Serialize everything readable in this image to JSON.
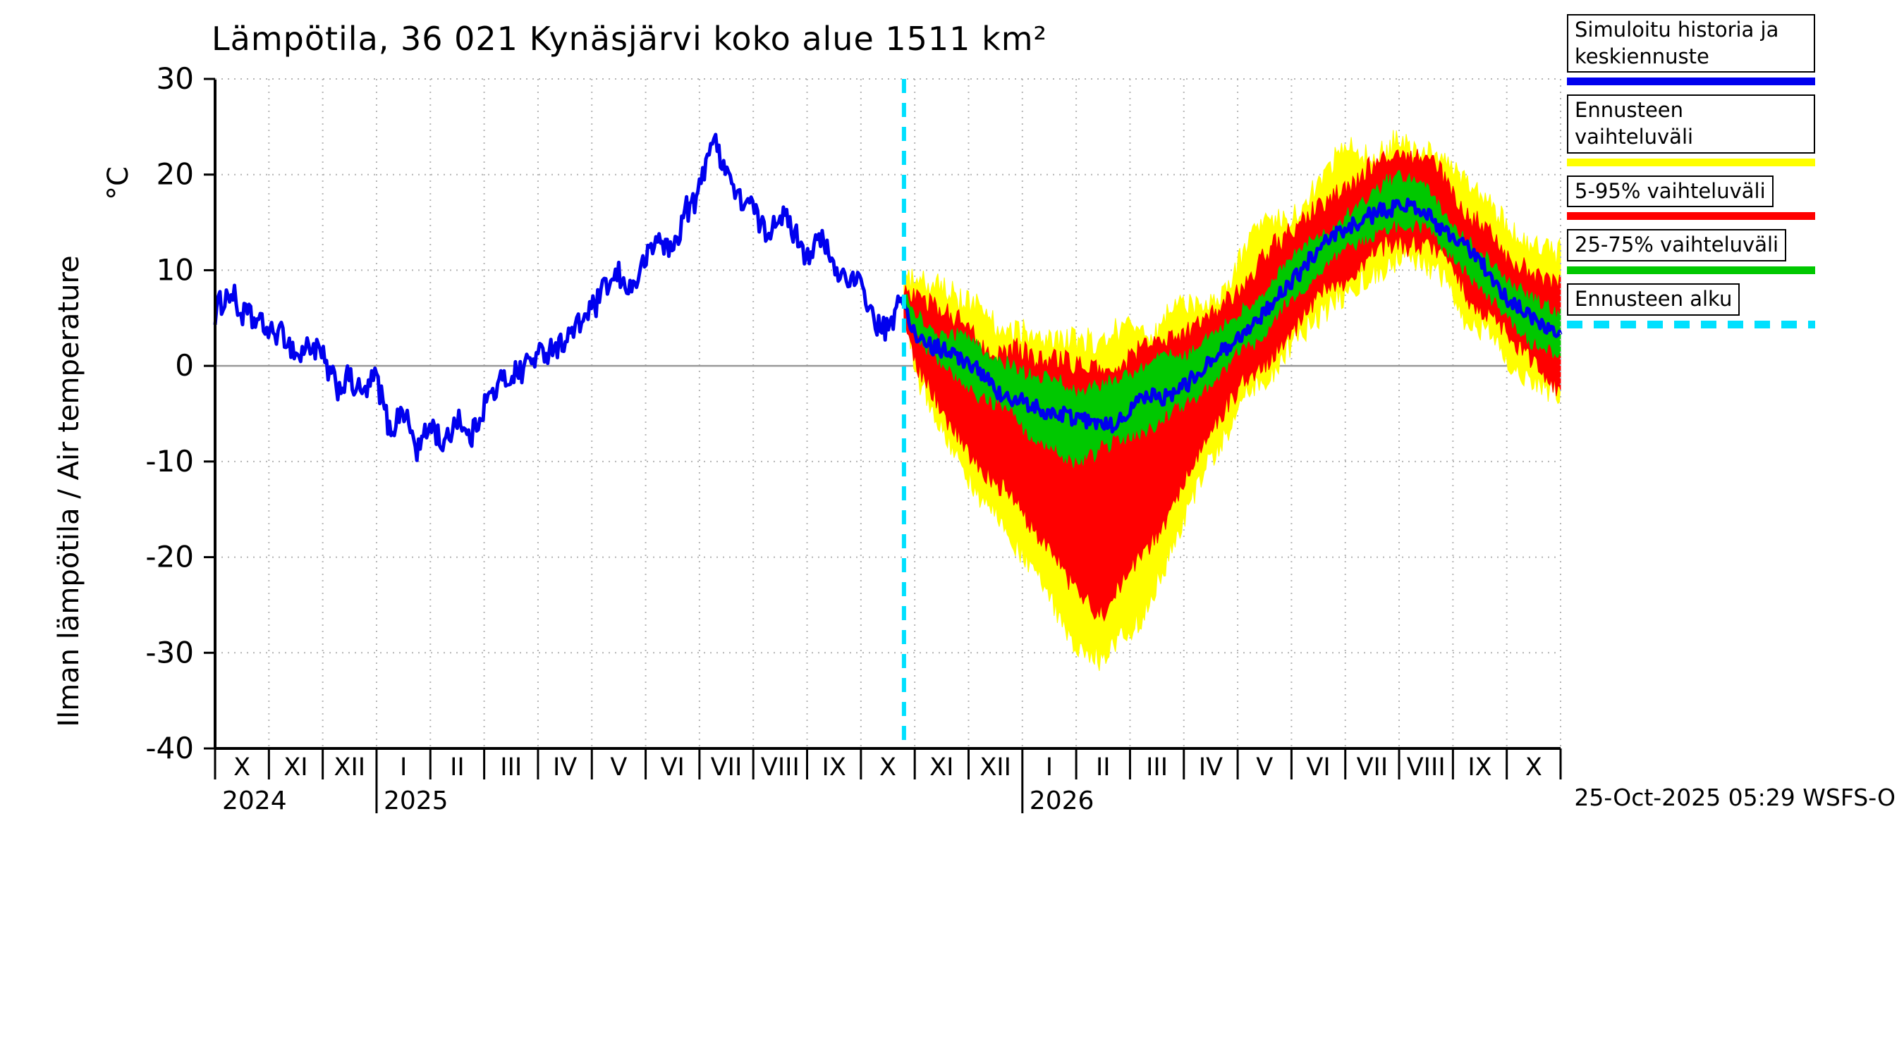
{
  "ylabel": {
    "main": "Ilman lämpötila / Air temperature",
    "unit": "°C"
  },
  "footer": "25-Oct-2025 05:29 WSFS-O",
  "legend": {
    "items": [
      {
        "label": "Simuloitu historia ja keskiennuste",
        "color": "#0000ee",
        "style": "solid"
      },
      {
        "label": "Ennusteen vaihteluväli",
        "color": "#ffff00",
        "style": "solid"
      },
      {
        "label": "5-95% vaihteluväli",
        "color": "#ff0000",
        "style": "solid"
      },
      {
        "label": "25-75% vaihteluväli",
        "color": "#00c800",
        "style": "solid"
      },
      {
        "label": "Ennusteen alku",
        "color": "#00e0ff",
        "style": "dashed"
      }
    ]
  },
  "chart_data": {
    "type": "line",
    "title": "Lämpötila, 36 021 Kynäsjärvi koko alue 1511 km²",
    "xlabel": "",
    "ylabel": "Ilman lämpötila / Air temperature (°C)",
    "ylim": [
      -40,
      30
    ],
    "yticks": [
      -40,
      -30,
      -20,
      -10,
      0,
      10,
      20,
      30
    ],
    "xlim": [
      0,
      25
    ],
    "x_unit": "months since 2024-10-01",
    "month_tick_labels": [
      "X",
      "XI",
      "XII",
      "I",
      "II",
      "III",
      "IV",
      "V",
      "VI",
      "VII",
      "VIII",
      "IX",
      "X",
      "XI",
      "XII",
      "I",
      "II",
      "III",
      "IV",
      "V",
      "VI",
      "VII",
      "VIII",
      "IX",
      "X"
    ],
    "year_labels": [
      {
        "text": "2024",
        "x": 0
      },
      {
        "text": "2025",
        "x": 3
      },
      {
        "text": "2026",
        "x": 15
      }
    ],
    "forecast_start_x": 12.8,
    "forecast_start_label": "Ennusteen alku",
    "grid": true,
    "legend_position": "top-right",
    "colors": {
      "history": "#0000ee",
      "median": "#0000ee",
      "band_yellow": "#ffff00",
      "band_red": "#ff0000",
      "band_green": "#00c800",
      "forecast_start": "#00e0ff",
      "grid": "#b4b4b4",
      "zero_line": "#9a9a9a"
    },
    "series": {
      "history": {
        "name": "Simuloitu historia ja keskiennuste",
        "x": [
          0,
          0.25,
          0.5,
          0.75,
          1.0,
          1.25,
          1.5,
          1.75,
          2.0,
          2.25,
          2.5,
          2.75,
          3.0,
          3.25,
          3.5,
          3.75,
          4.0,
          4.25,
          4.5,
          4.75,
          5.0,
          5.25,
          5.5,
          5.75,
          6.0,
          6.25,
          6.5,
          6.75,
          7.0,
          7.25,
          7.5,
          7.75,
          8.0,
          8.25,
          8.5,
          8.75,
          9.0,
          9.2,
          9.35,
          9.5,
          9.75,
          10.0,
          10.25,
          10.5,
          10.75,
          11.0,
          11.25,
          11.5,
          11.75,
          12.0,
          12.25,
          12.5,
          12.8
        ],
        "y": [
          6,
          8,
          5,
          4,
          3,
          3.5,
          1.5,
          2,
          0,
          -3,
          -1.5,
          -4,
          -2,
          -7,
          -4,
          -9,
          -6,
          -8,
          -5,
          -7,
          -4,
          -2,
          -1,
          0,
          1,
          2.5,
          3,
          4,
          5,
          7,
          9,
          8,
          11,
          13,
          12,
          16,
          18,
          24,
          23,
          21,
          17,
          16,
          14,
          17,
          15,
          12,
          13,
          10,
          9,
          8,
          4,
          3,
          7
        ]
      },
      "forecast_median": {
        "name": "Keskiennuste",
        "x": [
          12.8,
          13,
          13.5,
          14,
          14.5,
          15,
          15.5,
          16,
          16.5,
          17,
          17.5,
          18,
          18.5,
          19,
          19.5,
          20,
          20.5,
          21,
          21.5,
          22,
          22.5,
          23,
          23.5,
          24,
          24.5,
          25
        ],
        "y": [
          7,
          4,
          1.5,
          0,
          -2,
          -3.5,
          -5,
          -6,
          -5.5,
          -4.5,
          -3.5,
          -1.5,
          0.5,
          3,
          6,
          9,
          12,
          14,
          16,
          17.5,
          16.5,
          13.5,
          10.5,
          7.5,
          5,
          3.5
        ]
      },
      "band_yellow": {
        "name": "Ennusteen vaihteluväli",
        "x": [
          12.8,
          13,
          13.5,
          14,
          14.5,
          15,
          15.5,
          16,
          16.5,
          17,
          17.5,
          18,
          18.5,
          19,
          19.5,
          20,
          20.5,
          21,
          21.5,
          22,
          22.5,
          23,
          23.5,
          24,
          24.5,
          25
        ],
        "lo": [
          6,
          -1,
          -7,
          -12,
          -16,
          -20,
          -25,
          -29,
          -31,
          -27,
          -22,
          -16,
          -10,
          -5,
          -1,
          2,
          5,
          8,
          10,
          11.5,
          10.5,
          7,
          4,
          1,
          -2,
          -4
        ],
        "hi": [
          8,
          9,
          8,
          6,
          4,
          3,
          2.5,
          2,
          1.5,
          2.5,
          3.5,
          5.5,
          8,
          10.5,
          13.5,
          16.5,
          19,
          21,
          23,
          24,
          23,
          20.5,
          17.5,
          14.5,
          11.5,
          10
        ]
      },
      "band_red": {
        "name": "5-95% vaihteluväli",
        "x": [
          12.8,
          13,
          13.5,
          14,
          14.5,
          15,
          15.5,
          16,
          16.5,
          17,
          17.5,
          18,
          18.5,
          19,
          19.5,
          20,
          20.5,
          21,
          21.5,
          22,
          22.5,
          23,
          23.5,
          24,
          24.5,
          25
        ],
        "lo": [
          6,
          1,
          -4,
          -8,
          -12,
          -15,
          -20,
          -24,
          -26,
          -22,
          -18,
          -12,
          -7,
          -3,
          0,
          4,
          7,
          10,
          12,
          13,
          12,
          9,
          6,
          3,
          0,
          -2
        ],
        "hi": [
          8,
          8,
          6,
          4,
          2,
          1,
          0.5,
          0,
          -0.5,
          0.5,
          1.5,
          3.5,
          5.5,
          8,
          11,
          14,
          16.5,
          18.5,
          20.5,
          21.5,
          20.5,
          18,
          15,
          12,
          9,
          8
        ]
      },
      "band_green": {
        "name": "25-75% vaihteluväli",
        "x": [
          12.8,
          13,
          13.5,
          14,
          14.5,
          15,
          15.5,
          16,
          16.5,
          17,
          17.5,
          18,
          18.5,
          19,
          19.5,
          20,
          20.5,
          21,
          21.5,
          22,
          22.5,
          23,
          23.5,
          24,
          24.5,
          25
        ],
        "lo": [
          6.5,
          3,
          0,
          -2,
          -4.5,
          -6.5,
          -8.5,
          -10,
          -9,
          -7.5,
          -6,
          -4,
          -1.5,
          1,
          4,
          7,
          10,
          12,
          14,
          15.5,
          14.5,
          11.5,
          8.5,
          5.5,
          3,
          1
        ],
        "hi": [
          7.5,
          6,
          3.5,
          2,
          0.5,
          -0.5,
          -1.5,
          -2.5,
          -2,
          -1,
          0,
          1.5,
          3.5,
          6,
          8.5,
          11.5,
          14,
          16,
          18,
          19.5,
          18.5,
          15.5,
          12.5,
          9.5,
          7,
          6
        ]
      }
    },
    "noise": {
      "seed": 1234,
      "step": 0.03,
      "history": 2.2,
      "median": 1.4,
      "green": 1.3,
      "red": 1.8,
      "yellow": 2.2
    }
  }
}
